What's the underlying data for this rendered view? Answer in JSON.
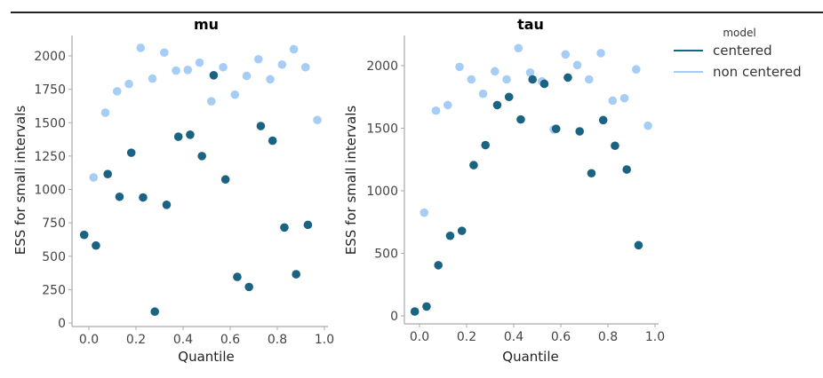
{
  "chart_data": [
    {
      "type": "scatter",
      "title": "mu",
      "xlabel": "Quantile",
      "ylabel": "ESS for small intervals",
      "xlim": [
        -0.05,
        1.02
      ],
      "ylim": [
        0,
        2150
      ],
      "xticks": [
        0.0,
        0.2,
        0.4,
        0.6,
        0.8,
        1.0
      ],
      "xtick_labels": [
        "0.0",
        "0.2",
        "0.4",
        "0.6",
        "0.8",
        "1.0"
      ],
      "yticks": [
        0,
        250,
        500,
        750,
        1000,
        1250,
        1500,
        1750,
        2000
      ],
      "ytick_labels": [
        "0",
        "250",
        "500",
        "750",
        "1000",
        "1250",
        "1500",
        "1750",
        "2000"
      ],
      "grid": false,
      "series": [
        {
          "name": "centered",
          "color": "#1b6383",
          "x": [
            -0.02,
            0.03,
            0.08,
            0.13,
            0.18,
            0.23,
            0.28,
            0.33,
            0.38,
            0.43,
            0.48,
            0.53,
            0.58,
            0.63,
            0.68,
            0.73,
            0.78,
            0.83,
            0.88,
            0.93
          ],
          "y": [
            660,
            580,
            1115,
            945,
            1275,
            940,
            85,
            885,
            1395,
            1410,
            1250,
            1855,
            1075,
            345,
            270,
            1475,
            1365,
            715,
            365,
            735
          ]
        },
        {
          "name": "non centered",
          "color": "#a6cdf5",
          "x": [
            0.02,
            0.07,
            0.12,
            0.17,
            0.22,
            0.27,
            0.32,
            0.37,
            0.42,
            0.47,
            0.52,
            0.57,
            0.62,
            0.67,
            0.72,
            0.77,
            0.82,
            0.87,
            0.92,
            0.97
          ],
          "y": [
            1090,
            1575,
            1735,
            1790,
            2060,
            1830,
            2025,
            1890,
            1895,
            1950,
            1660,
            1915,
            1710,
            1850,
            1975,
            1825,
            1935,
            2050,
            1915,
            1520
          ]
        }
      ]
    },
    {
      "type": "scatter",
      "title": "tau",
      "xlabel": "Quantile",
      "ylabel": "ESS for small intervals",
      "xlim": [
        -0.05,
        1.02
      ],
      "ylim": [
        0,
        2250
      ],
      "xticks": [
        0.0,
        0.2,
        0.4,
        0.6,
        0.8,
        1.0
      ],
      "xtick_labels": [
        "0.0",
        "0.2",
        "0.4",
        "0.6",
        "0.8",
        "1.0"
      ],
      "yticks": [
        0,
        500,
        1000,
        1500,
        2000
      ],
      "ytick_labels": [
        "0",
        "500",
        "1000",
        "1500",
        "2000"
      ],
      "grid": false,
      "series": [
        {
          "name": "centered",
          "color": "#1b6383",
          "x": [
            -0.02,
            0.03,
            0.08,
            0.13,
            0.18,
            0.23,
            0.28,
            0.33,
            0.38,
            0.43,
            0.48,
            0.53,
            0.58,
            0.63,
            0.68,
            0.73,
            0.78,
            0.83,
            0.88,
            0.93
          ],
          "y": [
            35,
            75,
            405,
            640,
            680,
            1205,
            1365,
            1685,
            1750,
            1570,
            1890,
            1855,
            1495,
            1905,
            1475,
            1140,
            1565,
            1360,
            1170,
            565
          ]
        },
        {
          "name": "non centered",
          "color": "#a6cdf5",
          "x": [
            0.02,
            0.07,
            0.12,
            0.17,
            0.22,
            0.27,
            0.32,
            0.37,
            0.42,
            0.47,
            0.52,
            0.57,
            0.62,
            0.67,
            0.72,
            0.77,
            0.82,
            0.87,
            0.92,
            0.97
          ],
          "y": [
            825,
            1640,
            1685,
            1990,
            1890,
            1775,
            1955,
            1890,
            2140,
            1945,
            1875,
            1490,
            2090,
            2005,
            1890,
            2100,
            1720,
            1740,
            1970,
            1520
          ]
        }
      ]
    }
  ],
  "legend": {
    "title": "model",
    "position": "upper right, outside",
    "entries": [
      {
        "label": "centered",
        "color": "#1b6383"
      },
      {
        "label": "non centered",
        "color": "#a6cdf5"
      }
    ]
  }
}
